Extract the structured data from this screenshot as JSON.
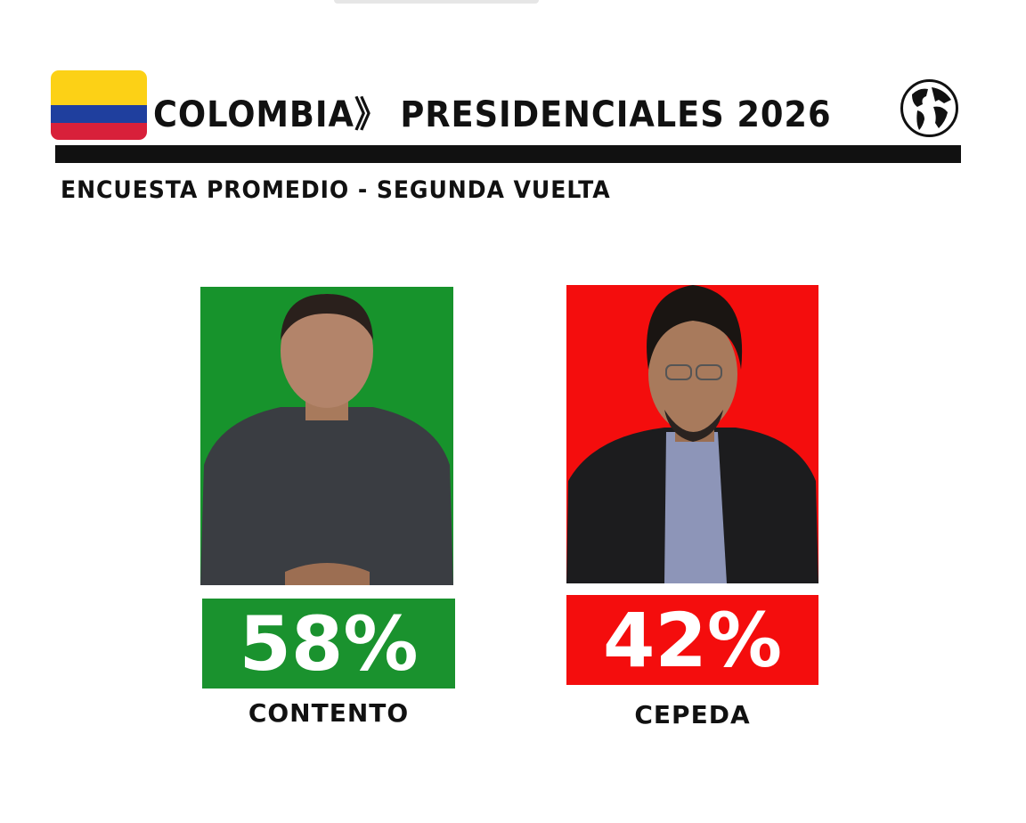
{
  "header": {
    "title": "COLOMBIA》 PRESIDENCIALES 2026",
    "subtitle": "ENCUESTA PROMEDIO - SEGUNDA VUELTA",
    "flag_icon": "colombia-flag-icon",
    "flag_colors": [
      "#fcd116",
      "#003893",
      "#ce1126"
    ],
    "globe_icon": "globe-icon"
  },
  "candidates": [
    {
      "name": "CONTENTO",
      "percent": "58%",
      "value": 58,
      "color": "#1a922e"
    },
    {
      "name": "CEPEDA",
      "percent": "42%",
      "value": 42,
      "color": "#f40d0d"
    }
  ]
}
